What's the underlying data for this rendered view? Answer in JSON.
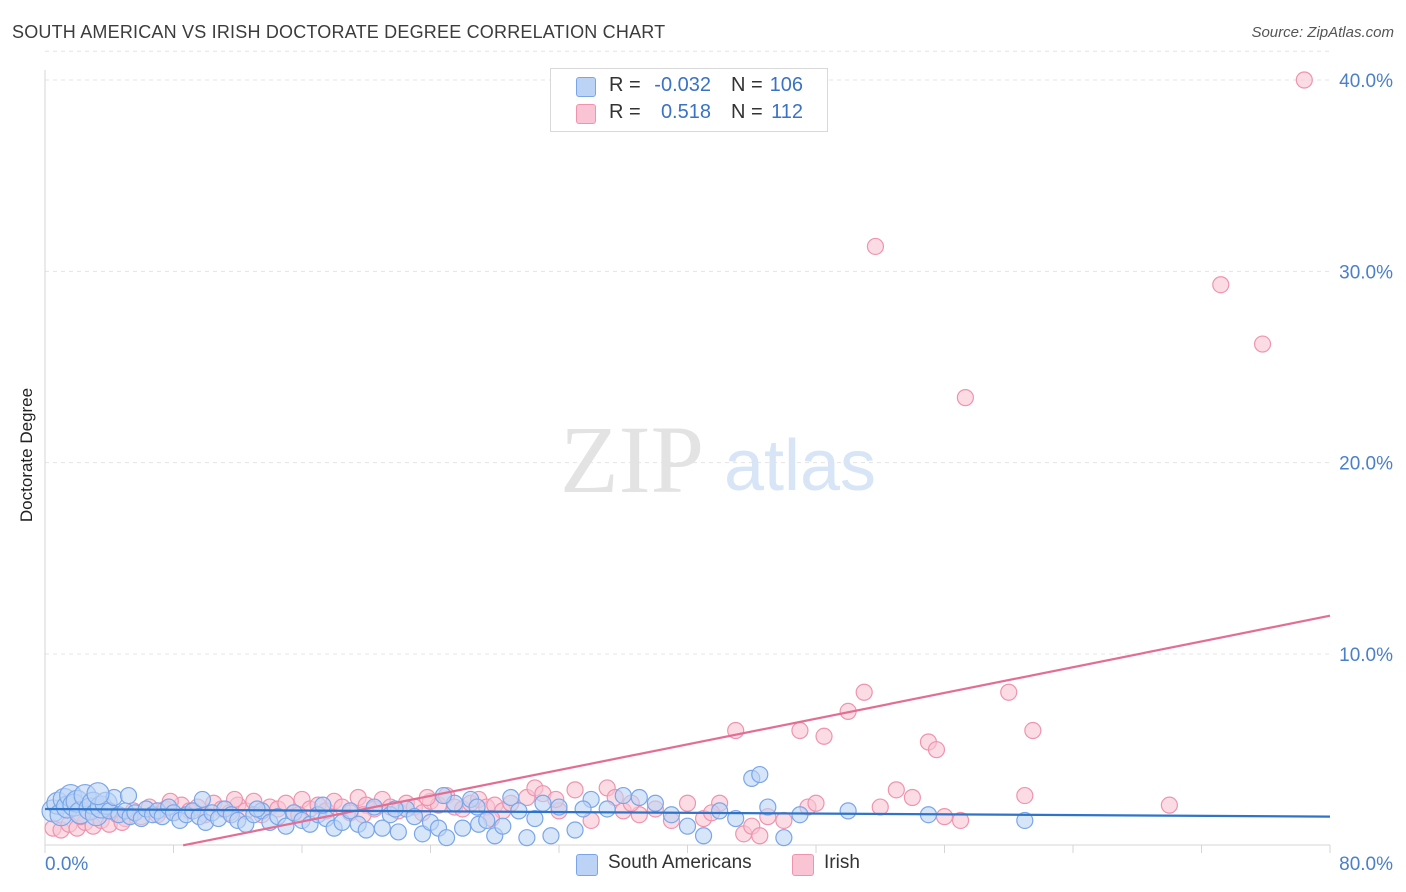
{
  "title": "SOUTH AMERICAN VS IRISH DOCTORATE DEGREE CORRELATION CHART",
  "source": "Source: ZipAtlas.com",
  "watermark": {
    "zip": "ZIP",
    "atlas": "atlas"
  },
  "legend": {
    "r_label": "R =",
    "n_label": "N =",
    "series": [
      {
        "name": "South Americans",
        "r": "-0.032",
        "n": "106"
      },
      {
        "name": "Irish",
        "r": "0.518",
        "n": "112"
      }
    ]
  },
  "colors": {
    "blue": "#7aa6e8",
    "blue_fill": "#bcd3f5",
    "blue_line": "#2f74c8",
    "pink": "#ee94ae",
    "pink_fill": "#f9c4d3",
    "pink_line": "#e46d93",
    "tick": "#4a7fc9"
  },
  "chart_data": {
    "type": "scatter",
    "title": "SOUTH AMERICAN VS IRISH DOCTORATE DEGREE CORRELATION CHART",
    "xlabel": "",
    "ylabel": "Doctorate Degree",
    "xlim": [
      0,
      80
    ],
    "ylim": [
      0,
      41
    ],
    "x_tick_labels": [
      "0.0%",
      "80.0%"
    ],
    "y_ticks": [
      10,
      20,
      30,
      40
    ],
    "y_tick_labels": [
      "10.0%",
      "20.0%",
      "30.0%",
      "40.0%"
    ],
    "series": [
      {
        "name": "South Americans",
        "trend": {
          "x": [
            0,
            80
          ],
          "y": [
            1.9,
            1.5
          ]
        },
        "points": [
          [
            0.5,
            1.8
          ],
          [
            0.8,
            2.2
          ],
          [
            1.0,
            1.6
          ],
          [
            1.2,
            2.4
          ],
          [
            1.4,
            2.0
          ],
          [
            1.6,
            2.6
          ],
          [
            1.8,
            2.1
          ],
          [
            2.0,
            2.3
          ],
          [
            2.2,
            1.7
          ],
          [
            2.5,
            2.6
          ],
          [
            2.8,
            1.9
          ],
          [
            3.0,
            2.2
          ],
          [
            3.2,
            1.6
          ],
          [
            3.5,
            2.0
          ],
          [
            3.8,
            2.2
          ],
          [
            4.0,
            1.8
          ],
          [
            4.3,
            2.5
          ],
          [
            4.6,
            1.6
          ],
          [
            5.0,
            1.8
          ],
          [
            5.3,
            1.5
          ],
          [
            5.6,
            1.7
          ],
          [
            6.0,
            1.4
          ],
          [
            6.3,
            1.9
          ],
          [
            6.7,
            1.6
          ],
          [
            7.0,
            1.8
          ],
          [
            7.3,
            1.5
          ],
          [
            7.7,
            2.0
          ],
          [
            8.0,
            1.7
          ],
          [
            8.4,
            1.3
          ],
          [
            8.8,
            1.6
          ],
          [
            9.2,
            1.8
          ],
          [
            9.6,
            1.5
          ],
          [
            10.0,
            1.2
          ],
          [
            10.4,
            1.7
          ],
          [
            10.8,
            1.4
          ],
          [
            11.2,
            1.9
          ],
          [
            11.6,
            1.6
          ],
          [
            12.0,
            1.3
          ],
          [
            12.5,
            1.1
          ],
          [
            13.0,
            1.6
          ],
          [
            13.5,
            1.8
          ],
          [
            14.0,
            1.2
          ],
          [
            14.5,
            1.5
          ],
          [
            15.0,
            1.0
          ],
          [
            15.5,
            1.7
          ],
          [
            16.0,
            1.3
          ],
          [
            16.5,
            1.1
          ],
          [
            17.0,
            1.6
          ],
          [
            17.5,
            1.4
          ],
          [
            18.0,
            0.9
          ],
          [
            18.5,
            1.2
          ],
          [
            19.0,
            1.8
          ],
          [
            19.5,
            1.1
          ],
          [
            20.0,
            0.8
          ],
          [
            20.5,
            2.0
          ],
          [
            21.0,
            0.9
          ],
          [
            21.5,
            1.6
          ],
          [
            22.0,
            0.7
          ],
          [
            22.5,
            1.9
          ],
          [
            23.0,
            1.5
          ],
          [
            23.5,
            0.6
          ],
          [
            24.0,
            1.2
          ],
          [
            24.5,
            0.9
          ],
          [
            25.0,
            0.4
          ],
          [
            25.5,
            2.2
          ],
          [
            26.0,
            0.9
          ],
          [
            26.5,
            2.4
          ],
          [
            27.0,
            1.1
          ],
          [
            27.5,
            1.3
          ],
          [
            28.0,
            0.5
          ],
          [
            28.5,
            1.0
          ],
          [
            29.0,
            2.5
          ],
          [
            29.5,
            1.8
          ],
          [
            30.0,
            0.4
          ],
          [
            31.0,
            2.2
          ],
          [
            32.0,
            2.0
          ],
          [
            33.0,
            0.8
          ],
          [
            34.0,
            2.4
          ],
          [
            35.0,
            1.9
          ],
          [
            36.0,
            2.6
          ],
          [
            37.0,
            2.5
          ],
          [
            38.0,
            2.2
          ],
          [
            39.0,
            1.6
          ],
          [
            40.0,
            1.0
          ],
          [
            41.0,
            0.5
          ],
          [
            42.0,
            1.8
          ],
          [
            43.0,
            1.4
          ],
          [
            44.0,
            3.5
          ],
          [
            44.5,
            3.7
          ],
          [
            45.0,
            2.0
          ],
          [
            46.0,
            0.4
          ],
          [
            47.0,
            1.6
          ],
          [
            50.0,
            1.8
          ],
          [
            55.0,
            1.6
          ],
          [
            61.0,
            1.3
          ],
          [
            3.3,
            2.7
          ],
          [
            5.2,
            2.6
          ],
          [
            9.8,
            2.4
          ],
          [
            13.2,
            1.9
          ],
          [
            17.3,
            2.1
          ],
          [
            21.8,
            1.9
          ],
          [
            24.8,
            2.6
          ],
          [
            26.9,
            2.0
          ],
          [
            30.5,
            1.4
          ],
          [
            31.5,
            0.5
          ],
          [
            33.5,
            1.9
          ]
        ]
      },
      {
        "name": "Irish",
        "trend": {
          "x": [
            8.6,
            80
          ],
          "y": [
            0,
            12.0
          ]
        },
        "points": [
          [
            0.5,
            0.9
          ],
          [
            1.0,
            0.8
          ],
          [
            1.5,
            1.1
          ],
          [
            2.0,
            0.9
          ],
          [
            2.5,
            1.2
          ],
          [
            3.0,
            1.0
          ],
          [
            3.5,
            1.3
          ],
          [
            4.0,
            1.1
          ],
          [
            4.5,
            1.6
          ],
          [
            5.0,
            1.4
          ],
          [
            5.5,
            1.8
          ],
          [
            6.0,
            1.5
          ],
          [
            6.5,
            2.0
          ],
          [
            7.0,
            1.6
          ],
          [
            7.5,
            1.9
          ],
          [
            8.0,
            1.7
          ],
          [
            8.5,
            2.1
          ],
          [
            9.0,
            1.8
          ],
          [
            9.5,
            2.0
          ],
          [
            10.0,
            1.6
          ],
          [
            10.5,
            2.2
          ],
          [
            11.0,
            1.9
          ],
          [
            11.5,
            1.7
          ],
          [
            12.0,
            2.1
          ],
          [
            12.5,
            1.8
          ],
          [
            13.0,
            2.3
          ],
          [
            13.5,
            1.6
          ],
          [
            14.0,
            2.0
          ],
          [
            14.5,
            1.9
          ],
          [
            15.0,
            2.2
          ],
          [
            15.5,
            1.7
          ],
          [
            16.0,
            2.4
          ],
          [
            16.5,
            1.9
          ],
          [
            17.0,
            2.1
          ],
          [
            17.5,
            1.8
          ],
          [
            18.0,
            2.3
          ],
          [
            18.5,
            2.0
          ],
          [
            19.0,
            1.7
          ],
          [
            19.5,
            2.5
          ],
          [
            20.0,
            2.1
          ],
          [
            20.5,
            1.9
          ],
          [
            21.0,
            2.4
          ],
          [
            21.5,
            2.0
          ],
          [
            22.0,
            1.8
          ],
          [
            22.5,
            2.2
          ],
          [
            23.0,
            2.0
          ],
          [
            23.5,
            1.7
          ],
          [
            24.0,
            2.3
          ],
          [
            24.5,
            2.1
          ],
          [
            25.0,
            2.6
          ],
          [
            25.5,
            2.0
          ],
          [
            26.0,
            1.9
          ],
          [
            26.5,
            2.2
          ],
          [
            27.0,
            2.4
          ],
          [
            27.5,
            2.0
          ],
          [
            28.0,
            2.1
          ],
          [
            28.5,
            1.8
          ],
          [
            29.0,
            2.2
          ],
          [
            30.0,
            2.5
          ],
          [
            30.5,
            3.0
          ],
          [
            31.0,
            2.7
          ],
          [
            32.0,
            1.8
          ],
          [
            33.0,
            2.9
          ],
          [
            34.0,
            1.3
          ],
          [
            35.0,
            3.0
          ],
          [
            35.5,
            2.5
          ],
          [
            36.0,
            1.8
          ],
          [
            37.0,
            1.6
          ],
          [
            38.0,
            1.9
          ],
          [
            39.0,
            1.3
          ],
          [
            40.0,
            2.2
          ],
          [
            41.0,
            1.4
          ],
          [
            42.0,
            2.2
          ],
          [
            43.0,
            6.0
          ],
          [
            43.5,
            0.6
          ],
          [
            44.0,
            1.0
          ],
          [
            44.5,
            0.5
          ],
          [
            45.0,
            1.5
          ],
          [
            46.0,
            1.3
          ],
          [
            47.0,
            6.0
          ],
          [
            47.5,
            2.0
          ],
          [
            48.0,
            2.2
          ],
          [
            48.5,
            5.7
          ],
          [
            50.0,
            7.0
          ],
          [
            51.0,
            8.0
          ],
          [
            52.0,
            2.0
          ],
          [
            53.0,
            2.9
          ],
          [
            54.0,
            2.5
          ],
          [
            55.0,
            5.4
          ],
          [
            55.5,
            5.0
          ],
          [
            56.0,
            1.5
          ],
          [
            57.0,
            1.3
          ],
          [
            60.0,
            8.0
          ],
          [
            61.0,
            2.6
          ],
          [
            61.5,
            6.0
          ],
          [
            70.0,
            2.1
          ],
          [
            51.7,
            31.3
          ],
          [
            57.3,
            23.4
          ],
          [
            73.2,
            29.3
          ],
          [
            75.8,
            26.2
          ],
          [
            78.4,
            40.0
          ],
          [
            2.2,
            1.5
          ],
          [
            4.8,
            1.2
          ],
          [
            7.8,
            2.3
          ],
          [
            11.8,
            2.4
          ],
          [
            15.8,
            1.6
          ],
          [
            19.8,
            1.6
          ],
          [
            23.8,
            2.5
          ],
          [
            27.8,
            1.4
          ],
          [
            31.8,
            2.4
          ],
          [
            36.5,
            2.2
          ],
          [
            41.5,
            1.7
          ]
        ]
      }
    ]
  }
}
